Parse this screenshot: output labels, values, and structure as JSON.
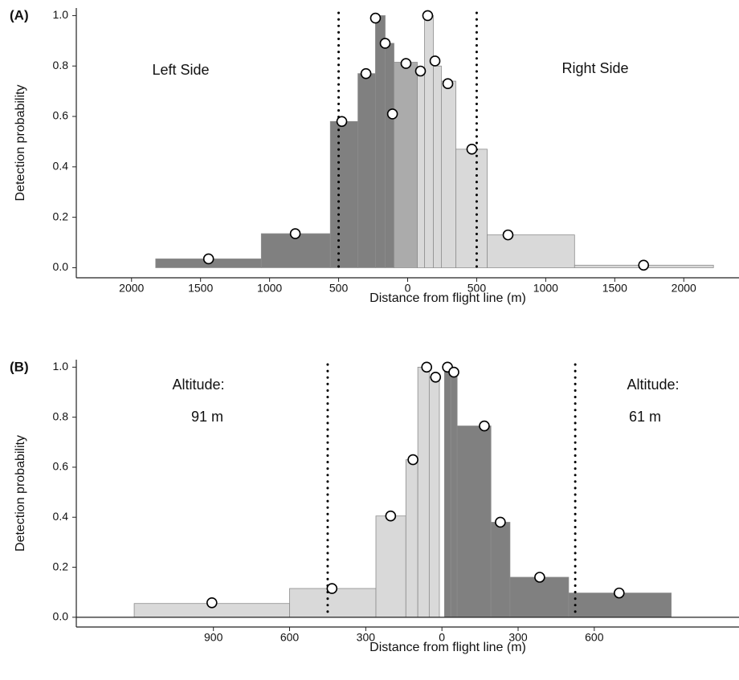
{
  "chart_data": [
    {
      "type": "histogram",
      "panel_label": "(A)",
      "xlabel": "Distance from flight line (m)",
      "ylabel": "Detection probability",
      "annotations": [
        "Left Side",
        "Right Side"
      ],
      "bar_left": [
        -1825,
        -1060,
        -560,
        -360,
        -233,
        -163,
        -99,
        70,
        122,
        186,
        244,
        349,
        576,
        1209
      ],
      "bar_right": [
        -1060,
        -560,
        -360,
        -233,
        -163,
        -99,
        70,
        122,
        186,
        244,
        349,
        576,
        1209,
        2215
      ],
      "values": [
        0.035,
        0.135,
        0.58,
        0.77,
        1.0,
        0.89,
        0.815,
        0.79,
        1.0,
        0.8,
        0.74,
        0.47,
        0.13,
        0.01
      ],
      "bar_colors": [
        "#808080",
        "#808080",
        "#808080",
        "#808080",
        "#808080",
        "#808080",
        "#ababab",
        "#d9d9d9",
        "#d9d9d9",
        "#d9d9d9",
        "#d9d9d9",
        "#d9d9d9",
        "#d9d9d9",
        "#d9d9d9"
      ],
      "points": {
        "x": [
          -1442,
          -814,
          -477,
          -302,
          -233,
          -163,
          -110,
          -12,
          93,
          145,
          198,
          291,
          465,
          727,
          1709
        ],
        "y": [
          0.035,
          0.135,
          0.58,
          0.77,
          0.99,
          0.89,
          0.61,
          0.81,
          0.78,
          1.0,
          0.82,
          0.73,
          0.47,
          0.13,
          0.01
        ]
      },
      "reference_lines": [
        -500,
        500
      ],
      "zero_line": false,
      "xlim": [
        -2400,
        2400
      ],
      "xticks": [
        {
          "value": -2000,
          "label": "2000"
        },
        {
          "value": -1500,
          "label": "1500"
        },
        {
          "value": -1000,
          "label": "1000"
        },
        {
          "value": -500,
          "label": "500"
        },
        0,
        500,
        1000,
        1500,
        2000
      ],
      "ylim": [
        -0.04,
        1.03
      ],
      "yticks": [
        {
          "value": 0,
          "label": "0.0"
        },
        0.2,
        0.4,
        0.6,
        0.8,
        {
          "value": 1,
          "label": "1.0"
        }
      ]
    },
    {
      "type": "histogram",
      "panel_label": "(B)",
      "xlabel": "Distance from flight line (m)",
      "ylabel": "Detection probability",
      "annotations": [
        "Altitude:",
        "91 m",
        "Altitude:",
        "61 m"
      ],
      "bar_left": [
        -1212,
        -600,
        -260,
        -142,
        -95,
        -50,
        10,
        35,
        60,
        193,
        268,
        499
      ],
      "bar_right": [
        -600,
        -260,
        -142,
        -95,
        -50,
        -10,
        35,
        60,
        193,
        268,
        499,
        903
      ],
      "values": [
        0.055,
        0.115,
        0.405,
        0.63,
        1.0,
        0.96,
        1.0,
        0.98,
        0.765,
        0.38,
        0.16,
        0.097
      ],
      "bar_colors": [
        "#d9d9d9",
        "#d9d9d9",
        "#d9d9d9",
        "#d9d9d9",
        "#d9d9d9",
        "#d9d9d9",
        "#808080",
        "#808080",
        "#808080",
        "#808080",
        "#808080",
        "#808080"
      ],
      "points": {
        "x": [
          -906,
          -433,
          -202,
          -114,
          -60,
          -25,
          22,
          47,
          167,
          230,
          385,
          698
        ],
        "y": [
          0.058,
          0.115,
          0.405,
          0.63,
          1.0,
          0.96,
          1.0,
          0.98,
          0.765,
          0.38,
          0.16,
          0.097
        ]
      },
      "reference_lines": [
        -450,
        525
      ],
      "zero_line": true,
      "xlim": [
        -1440,
        1170
      ],
      "xticks": [
        {
          "value": -900,
          "label": "900"
        },
        {
          "value": -600,
          "label": "600"
        },
        {
          "value": -300,
          "label": "300"
        },
        0,
        300,
        600
      ],
      "ylim": [
        -0.039,
        1.03
      ],
      "yticks": [
        {
          "value": 0,
          "label": "0.0"
        },
        0.2,
        0.4,
        0.6,
        0.8,
        {
          "value": 1,
          "label": "1.0"
        }
      ]
    }
  ]
}
